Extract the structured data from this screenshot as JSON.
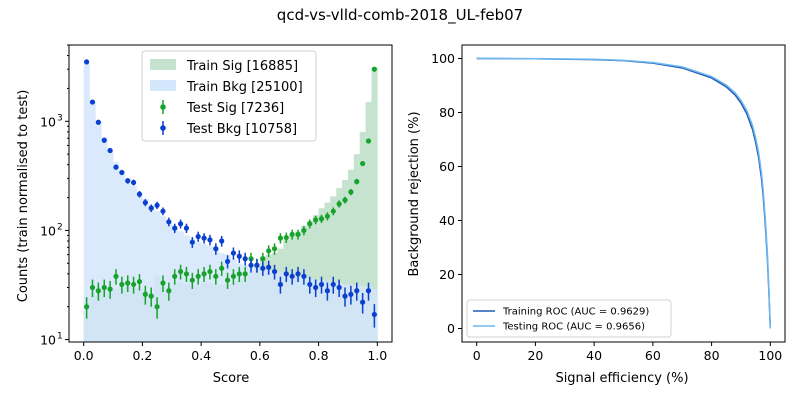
{
  "figure_title": "qcd-vs-vlld-comb-2018_UL-feb07",
  "chart_data": [
    {
      "type": "histogram",
      "scale_y": "log",
      "xlabel": "Score",
      "ylabel": "Counts (train normalised to test)",
      "xlim": [
        -0.05,
        1.05
      ],
      "ylim": [
        9.5,
        5000
      ],
      "x_ticks": [
        0.0,
        0.2,
        0.4,
        0.6,
        0.8,
        1.0
      ],
      "x_tick_labels": [
        "0.0",
        "0.2",
        "0.4",
        "0.6",
        "0.8",
        "1.0"
      ],
      "y_ticks": [
        10,
        100,
        1000
      ],
      "y_tick_labels": [
        "10",
        "10",
        "10"
      ],
      "y_tick_exponents": [
        "1",
        "2",
        "3"
      ],
      "legend_position": "top-center",
      "bin_centers": [
        0.01,
        0.03,
        0.05,
        0.07,
        0.09,
        0.11,
        0.13,
        0.15,
        0.17,
        0.19,
        0.21,
        0.23,
        0.25,
        0.27,
        0.29,
        0.31,
        0.33,
        0.35,
        0.37,
        0.39,
        0.41,
        0.43,
        0.45,
        0.47,
        0.49,
        0.51,
        0.53,
        0.55,
        0.57,
        0.59,
        0.61,
        0.63,
        0.65,
        0.67,
        0.69,
        0.71,
        0.73,
        0.75,
        0.77,
        0.79,
        0.81,
        0.83,
        0.85,
        0.87,
        0.89,
        0.91,
        0.93,
        0.95,
        0.97,
        0.99
      ],
      "series": [
        {
          "name": "Train Sig [16885]",
          "kind": "filled_step",
          "color": "#c6e3cf",
          "values": [
            22,
            26,
            28,
            30,
            28,
            29,
            30,
            31,
            30,
            29,
            28,
            27,
            38,
            30,
            30,
            32,
            34,
            32,
            31,
            31,
            33,
            32,
            31,
            32,
            32,
            33,
            35,
            36,
            40,
            47,
            58,
            60,
            62,
            68,
            82,
            90,
            98,
            110,
            122,
            138,
            160,
            180,
            205,
            245,
            290,
            360,
            500,
            800,
            1500,
            3100
          ]
        },
        {
          "name": "Train Bkg [25100]",
          "kind": "filled_step",
          "color": "#d4e6fb",
          "values": [
            3400,
            1500,
            1000,
            720,
            540,
            420,
            350,
            300,
            255,
            220,
            195,
            170,
            150,
            135,
            118,
            108,
            98,
            90,
            84,
            78,
            75,
            72,
            68,
            62,
            60,
            55,
            50,
            48,
            46,
            45,
            44,
            43,
            42,
            41,
            40,
            39,
            38,
            37,
            36,
            35,
            35,
            34,
            33,
            33,
            32,
            32,
            31,
            31,
            30,
            29
          ]
        },
        {
          "name": "Test Sig [7236]",
          "kind": "errorbar",
          "color": "#17a32b",
          "values": [
            20,
            30,
            28,
            30,
            29,
            38,
            32,
            33,
            32,
            34,
            26,
            25,
            20,
            33,
            28,
            38,
            42,
            40,
            35,
            38,
            40,
            42,
            38,
            45,
            35,
            38,
            40,
            40,
            55,
            48,
            55,
            65,
            68,
            85,
            86,
            92,
            92,
            100,
            115,
            125,
            128,
            135,
            150,
            175,
            190,
            225,
            280,
            410,
            660,
            3000
          ]
        },
        {
          "name": "Test Bkg [10758]",
          "kind": "errorbar",
          "color": "#0b3fd0",
          "values": [
            3500,
            1500,
            980,
            670,
            540,
            380,
            340,
            285,
            275,
            215,
            180,
            160,
            170,
            150,
            120,
            105,
            115,
            105,
            78,
            88,
            85,
            82,
            68,
            80,
            52,
            62,
            58,
            55,
            48,
            48,
            45,
            46,
            42,
            32,
            40,
            38,
            40,
            38,
            32,
            30,
            32,
            28,
            32,
            30,
            25,
            26,
            28,
            22,
            28,
            17
          ]
        }
      ]
    },
    {
      "type": "line",
      "xlabel": "Signal efficiency (%)",
      "ylabel": "Background rejection (%)",
      "xlim": [
        -5,
        105
      ],
      "ylim": [
        -5,
        105
      ],
      "x_ticks": [
        0,
        20,
        40,
        60,
        80,
        100
      ],
      "x_tick_labels": [
        "0",
        "20",
        "40",
        "60",
        "80",
        "100"
      ],
      "y_ticks": [
        0,
        20,
        40,
        60,
        80,
        100
      ],
      "y_tick_labels": [
        "0",
        "20",
        "40",
        "60",
        "80",
        "100"
      ],
      "legend_position": "lower-left",
      "series": [
        {
          "name": "Training ROC (AUC = 0.9629)",
          "color": "#1f5ab8",
          "x": [
            0,
            20,
            40,
            50,
            60,
            70,
            80,
            85,
            88,
            90,
            92,
            94,
            95,
            96,
            97,
            97.5,
            98,
            98.5,
            99,
            99.5,
            100
          ],
          "y": [
            100,
            99.9,
            99.6,
            99.2,
            98.3,
            96.5,
            92.8,
            89.5,
            86.5,
            83.5,
            79.5,
            73.5,
            69,
            63.5,
            55.5,
            50,
            43,
            35,
            26,
            14,
            0
          ]
        },
        {
          "name": "Testing ROC  (AUC = 0.9656)",
          "color": "#6cb8ee",
          "x": [
            0,
            20,
            40,
            50,
            60,
            70,
            80,
            85,
            88,
            90,
            92,
            94,
            95,
            96,
            97,
            97.5,
            98,
            98.5,
            99,
            99.5,
            100
          ],
          "y": [
            100,
            99.9,
            99.7,
            99.3,
            98.5,
            96.9,
            93.3,
            90.2,
            87.3,
            84.5,
            80.7,
            75,
            70.6,
            65.3,
            57.5,
            52,
            45,
            37,
            28,
            15,
            0
          ]
        }
      ]
    }
  ]
}
